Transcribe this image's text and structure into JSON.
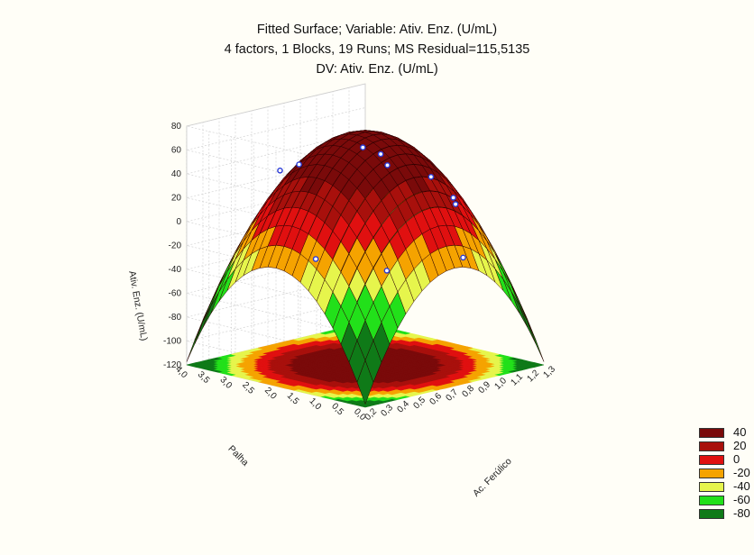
{
  "chart_data": {
    "type": "surface3d",
    "title": [
      "Fitted Surface; Variable: Ativ. Enz. (U/mL)",
      "4 factors, 1 Blocks, 19 Runs; MS Residual=115,5135",
      "DV: Ativ. Enz. (U/mL)"
    ],
    "xlabel": "Ac. Ferúlico",
    "ylabel": "Palha",
    "zlabel": "Ativ. Enz. (U/mL)",
    "x_ticks": [
      "0,2",
      "0,3",
      "0,4",
      "0,5",
      "0,6",
      "0,7",
      "0,8",
      "0,9",
      "1,0",
      "1,1",
      "1,2",
      "1,3"
    ],
    "y_ticks": [
      "0,0",
      "0,5",
      "1,0",
      "1,5",
      "2,0",
      "2,5",
      "3,0",
      "3,5",
      "4,0"
    ],
    "z_ticks": [
      "80",
      "60",
      "40",
      "20",
      "0",
      "-20",
      "-40",
      "-60",
      "-80",
      "-100",
      "-120"
    ],
    "xlim": [
      0.2,
      1.3
    ],
    "ylim": [
      0.0,
      4.0
    ],
    "zlim": [
      -120,
      80
    ],
    "surface": {
      "peak_x": 0.75,
      "peak_y": 2.0,
      "peak_z": 75,
      "edge_z": -50
    },
    "points": [
      {
        "x": 0.5,
        "y": 3.0,
        "z": 42
      },
      {
        "x": 0.7,
        "y": 3.3,
        "z": 38
      },
      {
        "x": 0.9,
        "y": 2.6,
        "z": 52
      },
      {
        "x": 0.9,
        "y": 2.2,
        "z": 50
      },
      {
        "x": 0.9,
        "y": 2.05,
        "z": 42
      },
      {
        "x": 1.1,
        "y": 1.8,
        "z": 28
      },
      {
        "x": 1.1,
        "y": 1.3,
        "z": 15
      },
      {
        "x": 1.1,
        "y": 1.25,
        "z": 10
      },
      {
        "x": 0.5,
        "y": 2.2,
        "z": -25
      },
      {
        "x": 0.8,
        "y": 1.7,
        "z": -40
      },
      {
        "x": 1.05,
        "y": 0.9,
        "z": -30
      }
    ],
    "legend": [
      {
        "label": "40",
        "color": "#7a0a0a"
      },
      {
        "label": "20",
        "color": "#a8100c"
      },
      {
        "label": "0",
        "color": "#e01010"
      },
      {
        "label": "-20",
        "color": "#f5a300"
      },
      {
        "label": "-40",
        "color": "#e6f54c"
      },
      {
        "label": "-60",
        "color": "#22e01a"
      },
      {
        "label": "-80",
        "color": "#0f7a18"
      }
    ],
    "legend_position": "bottom-right"
  }
}
